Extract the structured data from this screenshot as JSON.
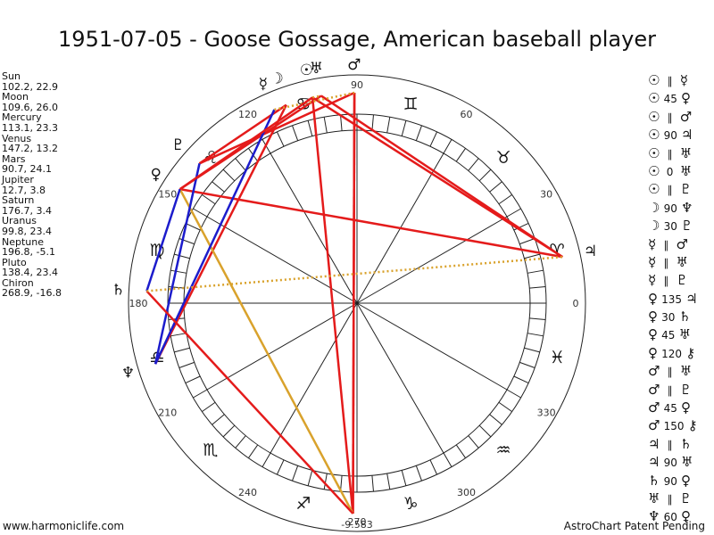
{
  "title": "1951-07-05 - Goose Gossage, American baseball player",
  "footer": {
    "left": "www.harmoniclife.com",
    "right": "AstroChart Patent Pending",
    "bottom_value": "-9.583"
  },
  "planets": [
    {
      "name": "Sun",
      "values": "102.2, 22.9",
      "lon": 102.2,
      "glyph": "☉"
    },
    {
      "name": "Moon",
      "values": "109.6, 26.0",
      "lon": 109.6,
      "glyph": "☽"
    },
    {
      "name": "Mercury",
      "values": "113.1, 23.3",
      "lon": 113.1,
      "glyph": "☿"
    },
    {
      "name": "Venus",
      "values": "147.2, 13.2",
      "lon": 147.2,
      "glyph": "♀"
    },
    {
      "name": "Mars",
      "values": "90.7, 24.1",
      "lon": 90.7,
      "glyph": "♂"
    },
    {
      "name": "Jupiter",
      "values": "12.7, 3.8",
      "lon": 12.7,
      "glyph": "♃"
    },
    {
      "name": "Saturn",
      "values": "176.7, 3.4",
      "lon": 176.7,
      "glyph": "♄"
    },
    {
      "name": "Uranus",
      "values": "99.8, 23.4",
      "lon": 99.8,
      "glyph": "♅"
    },
    {
      "name": "Neptune",
      "values": "196.8, -5.1",
      "lon": 196.8,
      "glyph": "♆"
    },
    {
      "name": "Pluto",
      "values": "138.4, 23.4",
      "lon": 138.4,
      "glyph": "♇"
    },
    {
      "name": "Chiron",
      "values": "268.9, -16.8",
      "lon": 268.9,
      "glyph": "⚷"
    }
  ],
  "wheel": {
    "degree_labels": [
      "0",
      "30",
      "60",
      "90",
      "120",
      "150",
      "180",
      "210",
      "240",
      "270",
      "300",
      "330"
    ],
    "signs": [
      "♈",
      "♉",
      "♊",
      "♋",
      "♌",
      "♍",
      "♎",
      "♏",
      "♐",
      "♑",
      "♒",
      "♓"
    ],
    "colors": {
      "red": "#e41b1b",
      "blue": "#1c1ccc",
      "gold": "#d9a22c",
      "dotted": "#d9a22c"
    }
  },
  "aspects": [
    {
      "p1": "☉",
      "type": "∥",
      "p2": "☿"
    },
    {
      "p1": "☉",
      "type": "45",
      "p2": "♀"
    },
    {
      "p1": "☉",
      "type": "∥",
      "p2": "♂"
    },
    {
      "p1": "☉",
      "type": "90",
      "p2": "♃"
    },
    {
      "p1": "☉",
      "type": "∥",
      "p2": "♅"
    },
    {
      "p1": "☉",
      "type": "0",
      "p2": "♅"
    },
    {
      "p1": "☉",
      "type": "∥",
      "p2": "♇"
    },
    {
      "p1": "☽",
      "type": "90",
      "p2": "♆"
    },
    {
      "p1": "☽",
      "type": "30",
      "p2": "♇"
    },
    {
      "p1": "☿",
      "type": "∥",
      "p2": "♂"
    },
    {
      "p1": "☿",
      "type": "∥",
      "p2": "♅"
    },
    {
      "p1": "☿",
      "type": "∥",
      "p2": "♇"
    },
    {
      "p1": "♀",
      "type": "135",
      "p2": "♃"
    },
    {
      "p1": "♀",
      "type": "30",
      "p2": "♄"
    },
    {
      "p1": "♀",
      "type": "45",
      "p2": "♅"
    },
    {
      "p1": "♀",
      "type": "120",
      "p2": "⚷"
    },
    {
      "p1": "♂",
      "type": "∥",
      "p2": "♅"
    },
    {
      "p1": "♂",
      "type": "∥",
      "p2": "♇"
    },
    {
      "p1": "♂",
      "type": "45",
      "p2": "♀"
    },
    {
      "p1": "♂",
      "type": "150",
      "p2": "⚷"
    },
    {
      "p1": "♃",
      "type": "∥",
      "p2": "♄"
    },
    {
      "p1": "♃",
      "type": "90",
      "p2": "♅"
    },
    {
      "p1": "♄",
      "type": "90",
      "p2": "♀"
    },
    {
      "p1": "♅",
      "type": "∥",
      "p2": "♇"
    },
    {
      "p1": "♆",
      "type": "60",
      "p2": "♀"
    }
  ]
}
